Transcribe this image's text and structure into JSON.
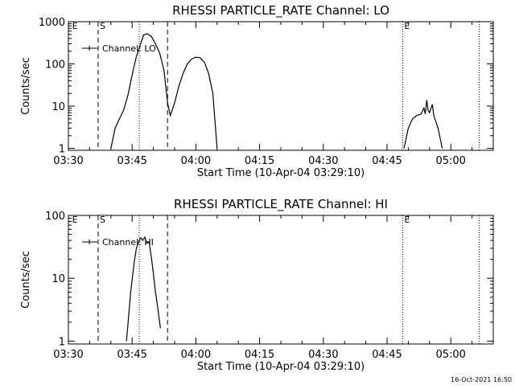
{
  "footer": {
    "timestamp": "16-Oct-2021 16:50"
  },
  "chart_data": [
    {
      "type": "line",
      "title": "RHESSI PARTICLE_RATE Channel: LO",
      "xlabel": "Start Time (10-Apr-04 03:29:10)",
      "ylabel": "Counts/sec",
      "yscale": "log",
      "ylim": [
        0.9,
        1000
      ],
      "xlim": [
        "03:30",
        "05:10"
      ],
      "x_ticks": [
        "03:30",
        "03:45",
        "04:00",
        "04:15",
        "04:30",
        "04:45",
        "05:00"
      ],
      "y_ticks": [
        "1",
        "10",
        "100",
        "1000"
      ],
      "legend": {
        "entries": [
          "Channel: LO"
        ],
        "position": "top-left"
      },
      "markers": [
        {
          "label": "E",
          "time": "03:30:30",
          "style": "none"
        },
        {
          "label": "S",
          "time": "03:37:00",
          "style": "dashed"
        },
        {
          "label": "",
          "time": "03:46:40",
          "style": "dotted"
        },
        {
          "label": "",
          "time": "03:53:20",
          "style": "dashed"
        },
        {
          "label": "E",
          "time": "04:48:40",
          "style": "dotted"
        },
        {
          "label": "",
          "time": "05:06:40",
          "style": "dotted"
        }
      ],
      "series": [
        {
          "name": "Channel: LO",
          "segments": [
            {
              "x": [
                "03:40:00",
                "03:41:00",
                "03:42:00",
                "03:43:00",
                "03:44:00",
                "03:45:00",
                "03:46:00",
                "03:47:00",
                "03:47:40",
                "03:48:30",
                "03:49:30",
                "03:50:30",
                "03:51:30",
                "03:52:30",
                "03:53:00",
                "03:53:20",
                "03:54:00",
                "03:55:00",
                "03:56:00",
                "03:57:00",
                "03:58:00",
                "03:59:00",
                "04:00:00",
                "04:01:00",
                "04:02:00",
                "04:03:00",
                "04:04:00",
                "04:05:00"
              ],
              "y": [
                1,
                3,
                5,
                8,
                18,
                55,
                150,
                300,
                480,
                520,
                450,
                300,
                180,
                70,
                25,
                12,
                6,
                12,
                30,
                60,
                100,
                130,
                145,
                140,
                110,
                60,
                20,
                1
              ]
            },
            {
              "x": [
                "04:49:00",
                "04:50:00",
                "04:51:00",
                "04:52:00",
                "04:53:00",
                "04:53:40",
                "04:54:00",
                "04:54:20",
                "04:54:40",
                "04:55:00",
                "04:55:40",
                "04:56:00",
                "04:57:00",
                "04:58:00"
              ],
              "y": [
                1,
                3,
                5,
                6,
                6.5,
                9,
                6.5,
                14,
                8,
                7,
                11,
                6,
                3,
                1
              ]
            }
          ]
        }
      ]
    },
    {
      "type": "line",
      "title": "RHESSI PARTICLE_RATE Channel: HI",
      "xlabel": "Start Time (10-Apr-04 03:29:10)",
      "ylabel": "Counts/sec",
      "yscale": "log",
      "ylim": [
        0.9,
        100
      ],
      "xlim": [
        "03:30",
        "05:10"
      ],
      "x_ticks": [
        "03:30",
        "03:45",
        "04:00",
        "04:15",
        "04:30",
        "04:45",
        "05:00"
      ],
      "y_ticks": [
        "1",
        "10",
        "100"
      ],
      "legend": {
        "entries": [
          "Channel: HI"
        ],
        "position": "top-left"
      },
      "markers": [
        {
          "label": "E",
          "time": "03:30:30",
          "style": "none"
        },
        {
          "label": "S",
          "time": "03:37:00",
          "style": "dashed"
        },
        {
          "label": "",
          "time": "03:46:40",
          "style": "dotted"
        },
        {
          "label": "",
          "time": "03:53:20",
          "style": "dashed"
        },
        {
          "label": "E",
          "time": "04:48:40",
          "style": "dotted"
        },
        {
          "label": "",
          "time": "05:06:40",
          "style": "dotted"
        }
      ],
      "series": [
        {
          "name": "Channel: HI",
          "segments": [
            {
              "x": [
                "03:43:40",
                "03:44:40",
                "03:45:30",
                "03:46:00",
                "03:46:30",
                "03:47:00",
                "03:47:30",
                "03:48:00",
                "03:48:30",
                "03:49:00",
                "03:49:30",
                "03:50:00",
                "03:50:30",
                "03:51:00",
                "03:51:40"
              ],
              "y": [
                1,
                6,
                18,
                30,
                38,
                44,
                40,
                45,
                36,
                38,
                22,
                12,
                6,
                3.5,
                1.6
              ]
            }
          ]
        }
      ]
    }
  ]
}
